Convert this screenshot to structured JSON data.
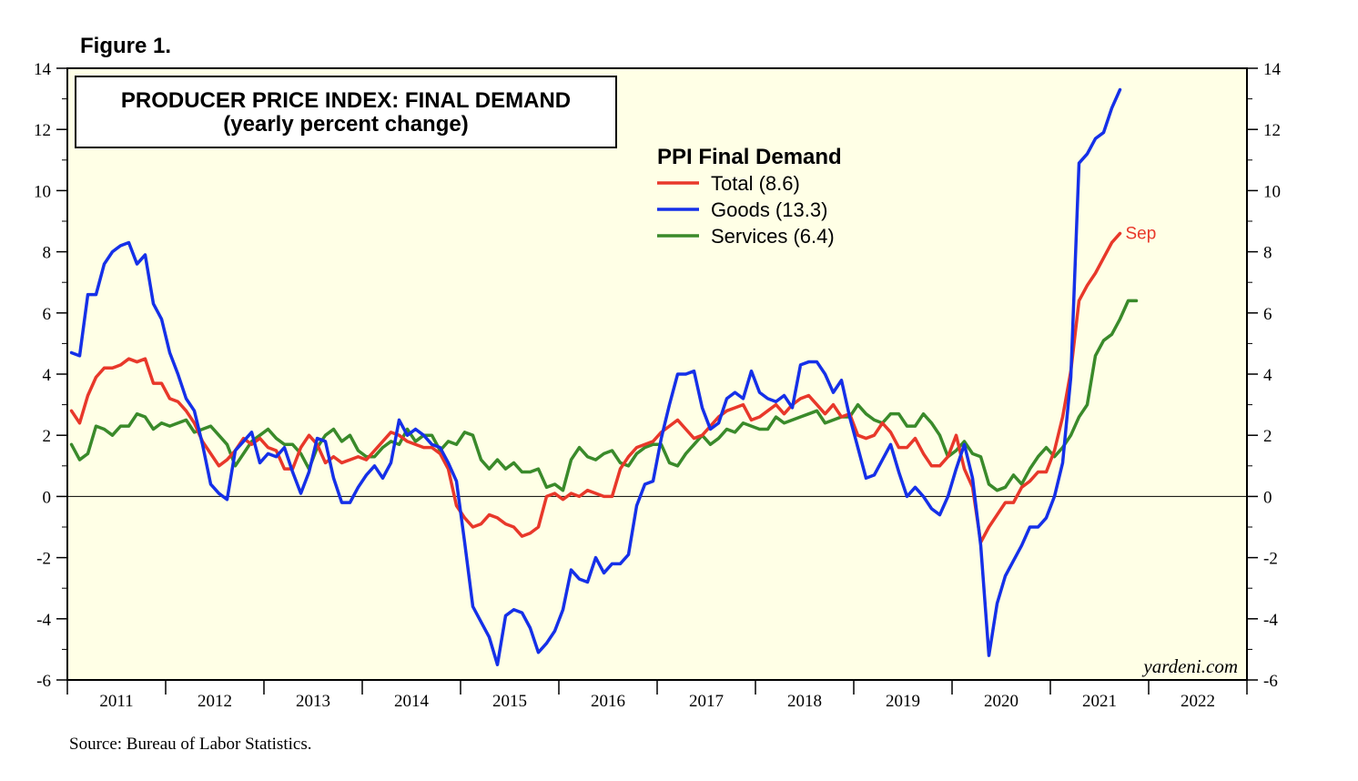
{
  "figure_label": "Figure 1.",
  "source": "Source: Bureau of Labor Statistics.",
  "watermark": "yardeni.com",
  "colors": {
    "plot_background": "#ffffe6",
    "total": "#e8382a",
    "goods": "#1530e8",
    "services": "#3a8a2a"
  },
  "chart_data": {
    "type": "line",
    "title": "PRODUCER PRICE INDEX: FINAL DEMAND",
    "subtitle": "(yearly percent change)",
    "legend_title": "PPI Final Demand",
    "legend_position": "top-center",
    "end_label": "Sep",
    "x_start": "2011-01",
    "x_tick_labels": [
      "2011",
      "2012",
      "2013",
      "2014",
      "2015",
      "2016",
      "2017",
      "2018",
      "2019",
      "2020",
      "2021",
      "2022"
    ],
    "xlim": [
      "2011-01",
      "2022-12"
    ],
    "ylim": [
      -6,
      14
    ],
    "y_ticks": [
      -6,
      -4,
      -2,
      0,
      2,
      4,
      6,
      8,
      10,
      12,
      14
    ],
    "grid": false,
    "zero_line": true,
    "series": [
      {
        "key": "total",
        "name": "Total",
        "legend_label": "Total (8.6)",
        "color": "#e8382a",
        "values": [
          2.8,
          2.4,
          3.3,
          3.9,
          4.2,
          4.2,
          4.3,
          4.5,
          4.4,
          4.5,
          3.7,
          3.7,
          3.2,
          3.1,
          2.8,
          2.4,
          1.8,
          1.4,
          1.0,
          1.2,
          1.5,
          1.9,
          1.7,
          1.9,
          1.6,
          1.5,
          0.9,
          0.9,
          1.6,
          2.0,
          1.7,
          1.1,
          1.3,
          1.1,
          1.2,
          1.3,
          1.2,
          1.5,
          1.8,
          2.1,
          2.0,
          1.8,
          1.7,
          1.6,
          1.6,
          1.4,
          0.9,
          -0.3,
          -0.7,
          -1.0,
          -0.9,
          -0.6,
          -0.7,
          -0.9,
          -1.0,
          -1.3,
          -1.2,
          -1.0,
          0.0,
          0.1,
          -0.1,
          0.1,
          0.0,
          0.2,
          0.1,
          0.0,
          0.0,
          0.9,
          1.3,
          1.6,
          1.7,
          1.8,
          2.1,
          2.3,
          2.5,
          2.2,
          1.9,
          2.0,
          2.3,
          2.6,
          2.8,
          2.9,
          3.0,
          2.5,
          2.6,
          2.8,
          3.0,
          2.7,
          3.0,
          3.2,
          3.3,
          3.0,
          2.7,
          3.0,
          2.6,
          2.7,
          2.0,
          1.9,
          2.0,
          2.4,
          2.1,
          1.6,
          1.6,
          1.9,
          1.4,
          1.0,
          1.0,
          1.3,
          2.0,
          0.9,
          0.3,
          -1.5,
          -1.0,
          -0.6,
          -0.2,
          -0.2,
          0.3,
          0.5,
          0.8,
          0.8,
          1.5,
          2.6,
          4.1,
          6.4,
          6.9,
          7.3,
          7.8,
          8.3,
          8.6
        ]
      },
      {
        "key": "goods",
        "name": "Goods",
        "legend_label": "Goods (13.3)",
        "color": "#1530e8",
        "values": [
          4.7,
          4.6,
          6.6,
          6.6,
          7.6,
          8.0,
          8.2,
          8.3,
          7.6,
          7.9,
          6.3,
          5.8,
          4.7,
          4.0,
          3.2,
          2.8,
          1.7,
          0.4,
          0.1,
          -0.1,
          1.5,
          1.8,
          2.1,
          1.1,
          1.4,
          1.3,
          1.6,
          0.8,
          0.1,
          0.8,
          1.9,
          1.8,
          0.6,
          -0.2,
          -0.2,
          0.3,
          0.7,
          1.0,
          0.6,
          1.1,
          2.5,
          2.0,
          2.2,
          2.0,
          1.7,
          1.6,
          1.1,
          0.5,
          -1.5,
          -3.6,
          -4.1,
          -4.6,
          -5.5,
          -3.9,
          -3.7,
          -3.8,
          -4.3,
          -5.1,
          -4.8,
          -4.4,
          -3.7,
          -2.4,
          -2.7,
          -2.8,
          -2.0,
          -2.5,
          -2.2,
          -2.2,
          -1.9,
          -0.3,
          0.4,
          0.5,
          1.9,
          3.0,
          4.0,
          4.0,
          4.1,
          2.9,
          2.2,
          2.4,
          3.2,
          3.4,
          3.2,
          4.1,
          3.4,
          3.2,
          3.1,
          3.3,
          2.9,
          4.3,
          4.4,
          4.4,
          4.0,
          3.4,
          3.8,
          2.6,
          1.6,
          0.6,
          0.7,
          1.2,
          1.7,
          0.8,
          0.0,
          0.3,
          0.0,
          -0.4,
          -0.6,
          0.0,
          0.9,
          1.7,
          0.6,
          -1.6,
          -5.2,
          -3.5,
          -2.6,
          -2.1,
          -1.6,
          -1.0,
          -1.0,
          -0.7,
          0.0,
          1.1,
          3.9,
          10.9,
          11.2,
          11.7,
          11.9,
          12.7,
          13.3
        ]
      },
      {
        "key": "services",
        "name": "Services",
        "legend_label": "Services (6.4)",
        "color": "#3a8a2a",
        "values": [
          1.7,
          1.2,
          1.4,
          2.3,
          2.2,
          2.0,
          2.3,
          2.3,
          2.7,
          2.6,
          2.2,
          2.4,
          2.3,
          2.4,
          2.5,
          2.1,
          2.2,
          2.3,
          2.0,
          1.7,
          1.0,
          1.4,
          1.8,
          2.0,
          2.2,
          1.9,
          1.7,
          1.7,
          1.4,
          0.9,
          1.6,
          2.0,
          2.2,
          1.8,
          2.0,
          1.5,
          1.3,
          1.3,
          1.6,
          1.8,
          1.7,
          2.2,
          1.8,
          2.0,
          2.0,
          1.5,
          1.8,
          1.7,
          2.1,
          2.0,
          1.2,
          0.9,
          1.2,
          0.9,
          1.1,
          0.8,
          0.8,
          0.9,
          0.3,
          0.4,
          0.2,
          1.2,
          1.6,
          1.3,
          1.2,
          1.4,
          1.5,
          1.1,
          1.0,
          1.4,
          1.6,
          1.7,
          1.7,
          1.1,
          1.0,
          1.4,
          1.7,
          2.0,
          1.7,
          1.9,
          2.2,
          2.1,
          2.4,
          2.3,
          2.2,
          2.2,
          2.6,
          2.4,
          2.5,
          2.6,
          2.7,
          2.8,
          2.4,
          2.5,
          2.6,
          2.6,
          3.0,
          2.7,
          2.5,
          2.4,
          2.7,
          2.7,
          2.3,
          2.3,
          2.7,
          2.4,
          2.0,
          1.3,
          1.5,
          1.8,
          1.4,
          1.3,
          0.4,
          0.2,
          0.3,
          0.7,
          0.4,
          0.9,
          1.3,
          1.6,
          1.3,
          1.6,
          2.0,
          2.6,
          3.0,
          4.6,
          5.1,
          5.3,
          5.8,
          6.4,
          6.4
        ]
      }
    ]
  }
}
